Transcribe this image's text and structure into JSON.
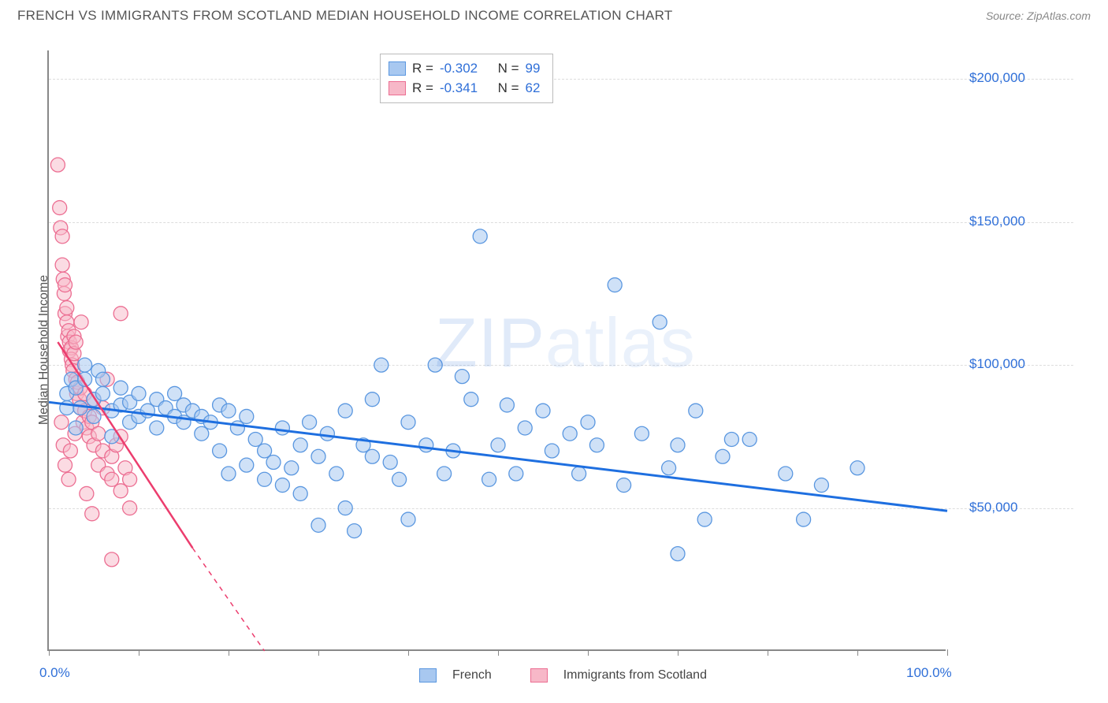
{
  "title": "FRENCH VS IMMIGRANTS FROM SCOTLAND MEDIAN HOUSEHOLD INCOME CORRELATION CHART",
  "source": "Source: ZipAtlas.com",
  "watermark": "ZIPatlas",
  "chart": {
    "type": "scatter",
    "background_color": "#ffffff",
    "grid_color": "#dddddd",
    "axis_color": "#888888",
    "label_fontsize": 16,
    "tick_fontsize": 17,
    "tick_color": "#2f6fd8",
    "ylabel": "Median Household Income",
    "xlim": [
      0,
      100
    ],
    "ylim": [
      0,
      210000
    ],
    "xticks": [
      0,
      10,
      20,
      30,
      40,
      50,
      60,
      70,
      80,
      90,
      100
    ],
    "xtick_labels": {
      "0": "0.0%",
      "100": "100.0%"
    },
    "yticks": [
      50000,
      100000,
      150000,
      200000
    ],
    "ytick_labels": [
      "$50,000",
      "$100,000",
      "$150,000",
      "$200,000"
    ],
    "series": [
      {
        "name": "French",
        "color_fill": "#a8c8f0",
        "color_stroke": "#5a97e0",
        "line_color": "#1e6fe0",
        "line_width": 3,
        "marker_radius": 9,
        "fill_opacity": 0.55,
        "R": "-0.302",
        "N": "99",
        "trend": {
          "x1": 0,
          "y1": 87000,
          "x2": 100,
          "y2": 49000,
          "dash_after_x": 100
        },
        "points": [
          [
            2,
            85000
          ],
          [
            2,
            90000
          ],
          [
            2.5,
            95000
          ],
          [
            3,
            78000
          ],
          [
            3,
            92000
          ],
          [
            3.5,
            85000
          ],
          [
            4,
            95000
          ],
          [
            4,
            100000
          ],
          [
            5,
            88000
          ],
          [
            5,
            82000
          ],
          [
            5.5,
            98000
          ],
          [
            6,
            90000
          ],
          [
            6,
            95000
          ],
          [
            7,
            84000
          ],
          [
            7,
            75000
          ],
          [
            8,
            92000
          ],
          [
            8,
            86000
          ],
          [
            9,
            80000
          ],
          [
            9,
            87000
          ],
          [
            10,
            82000
          ],
          [
            10,
            90000
          ],
          [
            11,
            84000
          ],
          [
            12,
            88000
          ],
          [
            12,
            78000
          ],
          [
            13,
            85000
          ],
          [
            14,
            82000
          ],
          [
            14,
            90000
          ],
          [
            15,
            80000
          ],
          [
            15,
            86000
          ],
          [
            16,
            84000
          ],
          [
            17,
            76000
          ],
          [
            17,
            82000
          ],
          [
            18,
            80000
          ],
          [
            19,
            86000
          ],
          [
            19,
            70000
          ],
          [
            20,
            84000
          ],
          [
            20,
            62000
          ],
          [
            21,
            78000
          ],
          [
            22,
            82000
          ],
          [
            22,
            65000
          ],
          [
            23,
            74000
          ],
          [
            24,
            70000
          ],
          [
            24,
            60000
          ],
          [
            25,
            66000
          ],
          [
            26,
            78000
          ],
          [
            26,
            58000
          ],
          [
            27,
            64000
          ],
          [
            28,
            72000
          ],
          [
            28,
            55000
          ],
          [
            29,
            80000
          ],
          [
            30,
            68000
          ],
          [
            30,
            44000
          ],
          [
            31,
            76000
          ],
          [
            32,
            62000
          ],
          [
            33,
            84000
          ],
          [
            33,
            50000
          ],
          [
            34,
            42000
          ],
          [
            35,
            72000
          ],
          [
            36,
            68000
          ],
          [
            36,
            88000
          ],
          [
            37,
            100000
          ],
          [
            38,
            66000
          ],
          [
            39,
            60000
          ],
          [
            40,
            80000
          ],
          [
            40,
            46000
          ],
          [
            42,
            72000
          ],
          [
            43,
            100000
          ],
          [
            44,
            62000
          ],
          [
            45,
            70000
          ],
          [
            46,
            96000
          ],
          [
            47,
            88000
          ],
          [
            48,
            145000
          ],
          [
            49,
            60000
          ],
          [
            50,
            72000
          ],
          [
            51,
            86000
          ],
          [
            52,
            62000
          ],
          [
            53,
            78000
          ],
          [
            55,
            84000
          ],
          [
            56,
            70000
          ],
          [
            58,
            76000
          ],
          [
            59,
            62000
          ],
          [
            60,
            80000
          ],
          [
            61,
            72000
          ],
          [
            63,
            128000
          ],
          [
            64,
            58000
          ],
          [
            66,
            76000
          ],
          [
            68,
            115000
          ],
          [
            69,
            64000
          ],
          [
            70,
            72000
          ],
          [
            72,
            84000
          ],
          [
            73,
            46000
          ],
          [
            75,
            68000
          ],
          [
            76,
            74000
          ],
          [
            70,
            34000
          ],
          [
            78,
            74000
          ],
          [
            82,
            62000
          ],
          [
            84,
            46000
          ],
          [
            86,
            58000
          ],
          [
            90,
            64000
          ]
        ]
      },
      {
        "name": "Immigrants from Scotland",
        "color_fill": "#f7b8c8",
        "color_stroke": "#ec6e92",
        "line_color": "#ec3d6e",
        "line_width": 2.5,
        "marker_radius": 9,
        "fill_opacity": 0.5,
        "R": "-0.341",
        "N": "62",
        "trend": {
          "x1": 1,
          "y1": 108000,
          "x2": 16,
          "y2": 36000,
          "dash_after_x": 16,
          "dash_x2": 24,
          "dash_y2": 0
        },
        "points": [
          [
            1,
            170000
          ],
          [
            1.2,
            155000
          ],
          [
            1.3,
            148000
          ],
          [
            1.5,
            145000
          ],
          [
            1.5,
            135000
          ],
          [
            1.6,
            130000
          ],
          [
            1.7,
            125000
          ],
          [
            1.8,
            128000
          ],
          [
            1.8,
            118000
          ],
          [
            2,
            120000
          ],
          [
            2,
            115000
          ],
          [
            2.1,
            110000
          ],
          [
            2.2,
            112000
          ],
          [
            2.3,
            108000
          ],
          [
            2.3,
            105000
          ],
          [
            2.5,
            106000
          ],
          [
            2.5,
            102000
          ],
          [
            2.6,
            100000
          ],
          [
            2.7,
            98000
          ],
          [
            2.8,
            104000
          ],
          [
            2.8,
            110000
          ],
          [
            3,
            95000
          ],
          [
            3,
            108000
          ],
          [
            3.1,
            90000
          ],
          [
            3.2,
            94000
          ],
          [
            3.4,
            88000
          ],
          [
            3.5,
            92000
          ],
          [
            3.5,
            85000
          ],
          [
            3.8,
            80000
          ],
          [
            4,
            84000
          ],
          [
            4,
            90000
          ],
          [
            4.2,
            78000
          ],
          [
            4.5,
            82000
          ],
          [
            4.5,
            75000
          ],
          [
            4.8,
            80000
          ],
          [
            5,
            72000
          ],
          [
            5,
            88000
          ],
          [
            5.5,
            76000
          ],
          [
            5.5,
            65000
          ],
          [
            6,
            70000
          ],
          [
            6,
            85000
          ],
          [
            6.5,
            62000
          ],
          [
            6.5,
            95000
          ],
          [
            7,
            68000
          ],
          [
            7,
            60000
          ],
          [
            7.5,
            72000
          ],
          [
            8,
            56000
          ],
          [
            8,
            118000
          ],
          [
            8.5,
            64000
          ],
          [
            9,
            50000
          ],
          [
            9,
            60000
          ],
          [
            1.4,
            80000
          ],
          [
            1.6,
            72000
          ],
          [
            1.8,
            65000
          ],
          [
            2.2,
            60000
          ],
          [
            2.4,
            70000
          ],
          [
            2.9,
            76000
          ],
          [
            3.6,
            115000
          ],
          [
            4.2,
            55000
          ],
          [
            4.8,
            48000
          ],
          [
            7,
            32000
          ],
          [
            8,
            75000
          ]
        ]
      }
    ]
  },
  "legend_series1": "French",
  "legend_series2": "Immigrants from Scotland",
  "r_label": "R =",
  "n_label": "N ="
}
